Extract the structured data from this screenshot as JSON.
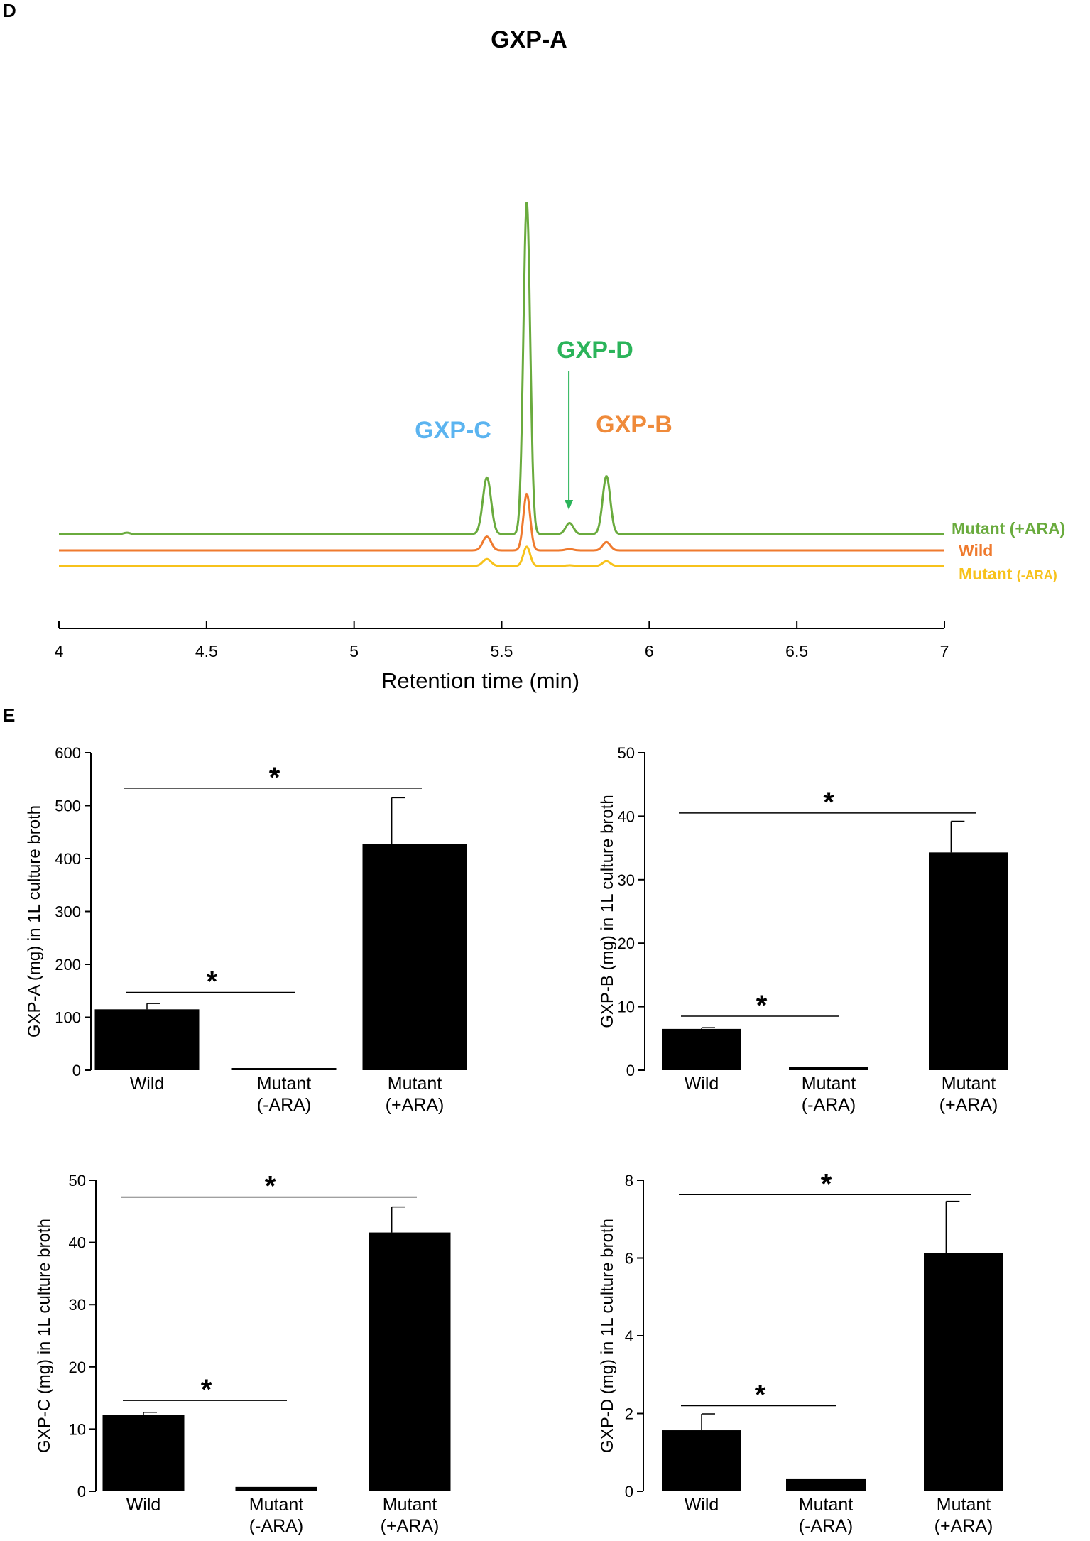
{
  "panel_d": {
    "letter": "D",
    "peak_labels": [
      {
        "text": "GXP-A",
        "color": "#000000",
        "rt": 5.58
      },
      {
        "text": "GXP-C",
        "color": "#5bb4f0",
        "rt": 5.45
      },
      {
        "text": "GXP-D",
        "color": "#2bb45a",
        "rt": 5.73
      },
      {
        "text": "GXP-B",
        "color": "#ef8a3a",
        "rt": 5.85
      }
    ],
    "traces": [
      {
        "name": "Mutant (+ARA)",
        "color": "#6aab3e"
      },
      {
        "name": "Wild",
        "color": "#ef7a2e"
      },
      {
        "name_main": "Mutant ",
        "name_small": "(-ARA)",
        "name": "Mutant (-ARA)",
        "color": "#f7c21b"
      }
    ]
  },
  "panel_e": {
    "letter": "E"
  },
  "chart_data": [
    {
      "type": "line",
      "title": "",
      "xlabel": "Retention time (min)",
      "ylabel": "",
      "xlim": [
        4,
        7
      ],
      "xticks": [
        "4",
        "4.5",
        "5",
        "5.5",
        "6",
        "6.5",
        "7"
      ],
      "xtick_values": [
        4,
        4.5,
        5,
        5.5,
        6,
        6.5,
        7
      ],
      "series": [
        {
          "name": "Mutant (+ARA)",
          "color": "#6aab3e",
          "baseline": 0,
          "peaks": [
            {
              "rt": 4.23,
              "height": 0.02,
              "width": 0.01
            },
            {
              "rt": 5.45,
              "height": 0.82,
              "width": 0.014
            },
            {
              "rt": 5.585,
              "height": 4.82,
              "width": 0.0115
            },
            {
              "rt": 5.73,
              "height": 0.16,
              "width": 0.013
            },
            {
              "rt": 5.855,
              "height": 0.84,
              "width": 0.013
            }
          ]
        },
        {
          "name": "Wild",
          "color": "#ef7a2e",
          "baseline": 0,
          "peaks": [
            {
              "rt": 5.45,
              "height": 0.2,
              "width": 0.014
            },
            {
              "rt": 5.585,
              "height": 0.82,
              "width": 0.0115
            },
            {
              "rt": 5.73,
              "height": 0.02,
              "width": 0.013
            },
            {
              "rt": 5.855,
              "height": 0.12,
              "width": 0.013
            }
          ]
        },
        {
          "name": "Mutant (-ARA)",
          "color": "#f7c21b",
          "baseline": 0,
          "peaks": [
            {
              "rt": 5.45,
              "height": 0.1,
              "width": 0.014
            },
            {
              "rt": 5.585,
              "height": 0.28,
              "width": 0.0115
            },
            {
              "rt": 5.73,
              "height": 0.01,
              "width": 0.013
            },
            {
              "rt": 5.855,
              "height": 0.07,
              "width": 0.013
            }
          ]
        }
      ]
    },
    {
      "type": "bar",
      "title": "",
      "ylabel": "GXP-A (mg) in 1L culture broth",
      "ylim": [
        0,
        600
      ],
      "yticks": [
        "0",
        "100",
        "200",
        "300",
        "400",
        "500",
        "600"
      ],
      "ytick_values": [
        0,
        100,
        200,
        300,
        400,
        500,
        600
      ],
      "categories": [
        [
          "Wild"
        ],
        [
          "Mutant",
          "(-ARA)"
        ],
        [
          "Mutant",
          "(+ARA)"
        ]
      ],
      "values": [
        115,
        4,
        427
      ],
      "errors": [
        11,
        0,
        88
      ],
      "significance": [
        {
          "from": 0,
          "to": 2,
          "y": 533,
          "label": "*"
        },
        {
          "from": 0,
          "to": 1,
          "y": 147,
          "label": "*"
        }
      ]
    },
    {
      "type": "bar",
      "title": "",
      "ylabel": "GXP-B (mg) in 1L culture broth",
      "ylim": [
        0,
        50
      ],
      "yticks": [
        "0",
        "10",
        "20",
        "30",
        "40",
        "50"
      ],
      "ytick_values": [
        0,
        10,
        20,
        30,
        40,
        50
      ],
      "categories": [
        [
          "Wild"
        ],
        [
          "Mutant",
          "(-ARA)"
        ],
        [
          "Mutant",
          "(+ARA)"
        ]
      ],
      "values": [
        6.5,
        0.5,
        34.3
      ],
      "errors": [
        0.2,
        0,
        4.9
      ],
      "significance": [
        {
          "from": 0,
          "to": 2,
          "y": 40.5,
          "label": "*"
        },
        {
          "from": 0,
          "to": 1,
          "y": 8.5,
          "label": "*"
        }
      ]
    },
    {
      "type": "bar",
      "title": "",
      "ylabel": "GXP-C (mg) in 1L culture broth",
      "ylim": [
        0,
        50
      ],
      "yticks": [
        "0",
        "10",
        "20",
        "30",
        "40",
        "50"
      ],
      "ytick_values": [
        0,
        10,
        20,
        30,
        40,
        50
      ],
      "categories": [
        [
          "Wild"
        ],
        [
          "Mutant",
          "(-ARA)"
        ],
        [
          "Mutant",
          "(+ARA)"
        ]
      ],
      "values": [
        12.3,
        0.7,
        41.6
      ],
      "errors": [
        0.4,
        0,
        4.1
      ],
      "significance": [
        {
          "from": 0,
          "to": 2,
          "y": 47.3,
          "label": "*"
        },
        {
          "from": 0,
          "to": 1,
          "y": 14.6,
          "label": "*"
        }
      ]
    },
    {
      "type": "bar",
      "title": "",
      "ylabel": "GXP-D (mg) in 1L culture broth",
      "ylim": [
        0,
        8
      ],
      "yticks": [
        "0",
        "2",
        "4",
        "6",
        "8"
      ],
      "ytick_values": [
        0,
        2,
        4,
        6,
        8
      ],
      "categories": [
        [
          "Wild"
        ],
        [
          "Mutant",
          "(-ARA)"
        ],
        [
          "Mutant",
          "(+ARA)"
        ]
      ],
      "values": [
        1.57,
        0.33,
        6.13
      ],
      "errors": [
        0.42,
        0,
        1.33
      ],
      "significance": [
        {
          "from": 0,
          "to": 2,
          "y": 7.63,
          "label": "*"
        },
        {
          "from": 0,
          "to": 1,
          "y": 2.2,
          "label": "*"
        }
      ]
    }
  ]
}
